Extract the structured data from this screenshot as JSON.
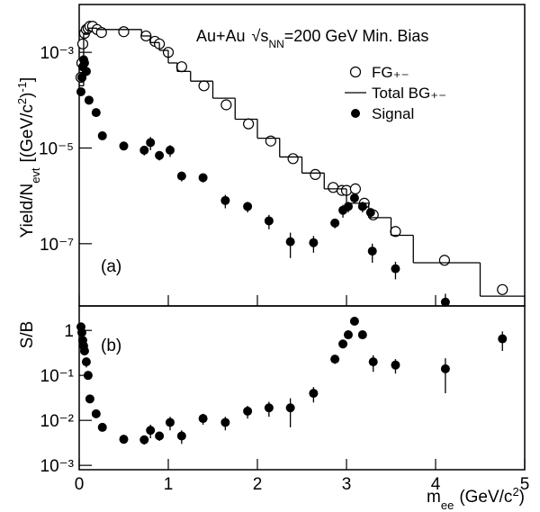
{
  "chart_data": [
    {
      "type": "scatter",
      "annotation": [
        "Au+Au",
        "√s",
        "NN",
        "=200 GeV Min. Bias"
      ],
      "y_label": [
        "Yield/N",
        "evt",
        "[(GeV/c",
        "2",
        ")",
        "-1",
        "]"
      ],
      "panel_label": "(a)",
      "xlim": [
        0,
        5
      ],
      "xticks": [
        0,
        1,
        2,
        3,
        4,
        5
      ],
      "ylim": [
        5e-09,
        0.01
      ],
      "log_y": true,
      "yticks": [
        {
          "value": 1e-07,
          "label": "10⁻⁷"
        },
        {
          "value": 1e-05,
          "label": "10⁻⁵"
        },
        {
          "value": 0.001,
          "label": "10⁻³"
        }
      ],
      "legend": "upper right",
      "series": [
        {
          "name": "FG₊₋",
          "type": "open-circle",
          "color": "#000000",
          "x": [
            0.02,
            0.03,
            0.04,
            0.06,
            0.08,
            0.1,
            0.12,
            0.15,
            0.2,
            0.25,
            0.5,
            0.75,
            0.85,
            0.9,
            1.0,
            1.15,
            1.4,
            1.65,
            1.9,
            2.15,
            2.4,
            2.65,
            2.85,
            2.95,
            3.0,
            3.1,
            3.2,
            3.3,
            3.55,
            4.1,
            4.75
          ],
          "values": [
            0.0003,
            0.0006,
            0.0015,
            0.0025,
            0.003,
            0.0032,
            0.0035,
            0.0035,
            0.003,
            0.0026,
            0.0027,
            0.0022,
            0.0017,
            0.0015,
            0.001,
            0.0005,
            0.0002,
            8e-05,
            3.2e-05,
            1.4e-05,
            6e-06,
            2.8e-06,
            1.5e-06,
            1.3e-06,
            1.3e-06,
            1.4e-06,
            7e-07,
            4e-07,
            1.8e-07,
            4.5e-08,
            1.1e-08
          ]
        },
        {
          "name": "Total BG₊₋",
          "type": "step",
          "color": "#000000",
          "x": [
            0,
            0.05,
            0.1,
            0.2,
            0.7,
            0.8,
            0.9,
            1.0,
            1.1,
            1.25,
            1.5,
            1.75,
            2.0,
            2.25,
            2.5,
            2.75,
            3.0,
            3.25,
            3.5,
            3.75,
            4.5
          ],
          "values": [
            0.0002,
            0.0025,
            0.0032,
            0.003,
            0.0022,
            0.0016,
            0.0011,
            0.0006,
            0.0004,
            0.00025,
            0.00011,
            4e-05,
            1.6e-05,
            6.5e-06,
            3e-06,
            1.4e-06,
            7e-07,
            3.5e-07,
            1.5e-07,
            4e-08,
            8e-09
          ]
        },
        {
          "name": "Signal",
          "type": "filled-circle",
          "color": "#000000",
          "x": [
            0.02,
            0.03,
            0.04,
            0.05,
            0.06,
            0.08,
            0.11,
            0.19,
            0.26,
            0.5,
            0.73,
            0.8,
            0.9,
            1.02,
            1.15,
            1.39,
            1.64,
            1.89,
            2.13,
            2.37,
            2.63,
            2.87,
            2.96,
            3.02,
            3.09,
            3.18,
            3.27,
            3.29,
            3.55,
            4.11
          ],
          "values": [
            0.00015,
            0.0003,
            0.0005,
            0.0007,
            0.0006,
            0.0004,
            0.0001,
            5.5e-05,
            1.8e-05,
            1.1e-05,
            9e-06,
            1.3e-05,
            7e-06,
            9e-06,
            2.6e-06,
            2.4e-06,
            8e-07,
            6e-07,
            3e-07,
            1.1e-07,
            1.05e-07,
            2.7e-07,
            5e-07,
            6e-07,
            9e-07,
            6e-07,
            4.5e-07,
            7e-08,
            3e-08,
            6e-09
          ],
          "errors": [
            2e-05,
            3e-05,
            5e-05,
            7e-05,
            6e-05,
            4e-05,
            1e-05,
            5e-06,
            2e-06,
            1.5e-06,
            2e-06,
            4e-06,
            1.5e-06,
            2.5e-06,
            6e-07,
            5e-07,
            2.5e-07,
            1.5e-07,
            1e-07,
            6e-08,
            4e-08,
            6e-08,
            1.5e-07,
            1.5e-07,
            2e-07,
            1.5e-07,
            1e-07,
            3e-08,
            1.2e-08,
            3e-09
          ]
        }
      ]
    },
    {
      "type": "scatter",
      "y_label": "S/B",
      "x_label": [
        "m",
        "ee",
        "(GeV/c",
        "2",
        ")"
      ],
      "panel_label": "(b)",
      "xlim": [
        0,
        5
      ],
      "xticks": [
        0,
        1,
        2,
        3,
        4,
        5
      ],
      "ylim": [
        0.0008,
        3.5
      ],
      "log_y": true,
      "yticks": [
        {
          "value": 0.001,
          "label": "10⁻³"
        },
        {
          "value": 0.01,
          "label": "10⁻²"
        },
        {
          "value": 0.1,
          "label": "10⁻¹"
        },
        1
      ],
      "series": [
        {
          "type": "filled-circle",
          "color": "#000000",
          "x": [
            0.02,
            0.03,
            0.04,
            0.05,
            0.06,
            0.08,
            0.1,
            0.12,
            0.19,
            0.26,
            0.5,
            0.73,
            0.8,
            0.9,
            1.02,
            1.15,
            1.39,
            1.64,
            1.89,
            2.13,
            2.37,
            2.63,
            2.87,
            2.96,
            3.02,
            3.09,
            3.18,
            3.3,
            3.55,
            4.11,
            4.75
          ],
          "values": [
            1.2,
            0.9,
            0.6,
            0.45,
            0.35,
            0.2,
            0.1,
            0.03,
            0.014,
            0.007,
            0.0038,
            0.0037,
            0.006,
            0.0045,
            0.009,
            0.0045,
            0.011,
            0.009,
            0.016,
            0.019,
            0.019,
            0.04,
            0.23,
            0.5,
            0.8,
            1.6,
            0.8,
            0.2,
            0.17,
            0.14,
            0.65
          ],
          "errors": [
            0.1,
            0.1,
            0.1,
            0.08,
            0.07,
            0.05,
            0.02,
            0.005,
            0.002,
            0.001,
            0.0005,
            0.0008,
            0.002,
            0.001,
            0.003,
            0.0015,
            0.003,
            0.003,
            0.005,
            0.007,
            0.012,
            0.015,
            0.05,
            0.1,
            0.15,
            0.2,
            0.15,
            0.08,
            0.06,
            0.1,
            0.3
          ]
        }
      ]
    }
  ]
}
